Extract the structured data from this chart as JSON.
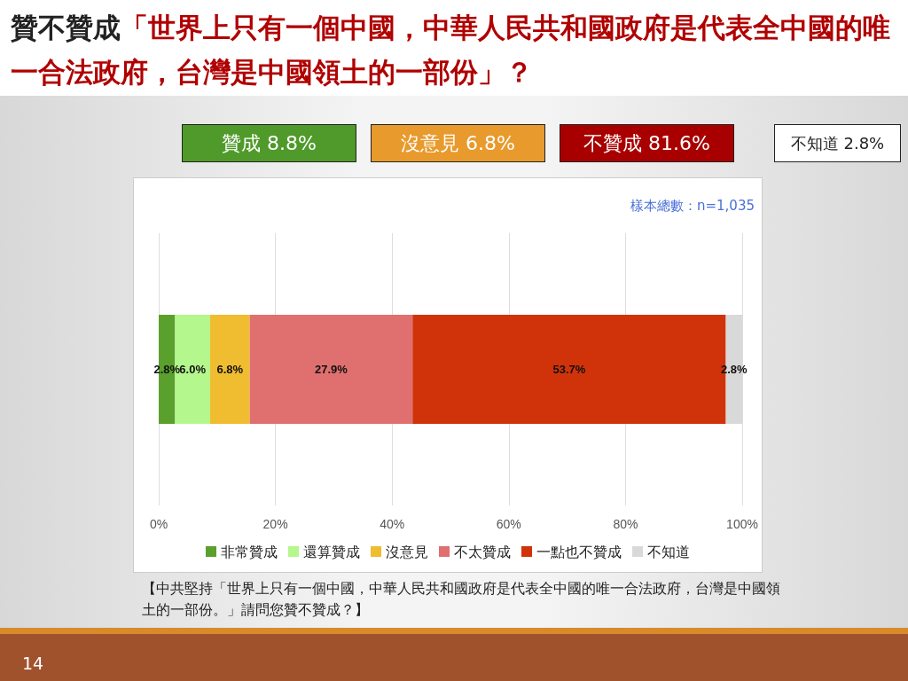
{
  "chart_data": {
    "type": "bar",
    "title": "贊不贊成「世界上只有一個中國，中華人民共和國政府是代表全中國的唯一合法政府，台灣是中國領土的一部份」？",
    "orientation": "horizontal",
    "stacked": true,
    "categories": [
      null
    ],
    "series": [
      {
        "name": "非常贊成",
        "color": "#5aa02c",
        "values": [
          2.8
        ],
        "value_labels": [
          "2.8%"
        ]
      },
      {
        "name": "還算贊成",
        "color": "#b4f78c",
        "values": [
          6.0
        ],
        "value_labels": [
          "6.0%"
        ]
      },
      {
        "name": "沒意見",
        "color": "#f0bd30",
        "values": [
          6.8
        ],
        "value_labels": [
          "6.8%"
        ]
      },
      {
        "name": "不太贊成",
        "color": "#e07070",
        "values": [
          27.9
        ],
        "value_labels": [
          "27.9%"
        ]
      },
      {
        "name": "一點也不贊成",
        "color": "#d0330a",
        "values": [
          53.7
        ],
        "value_labels": [
          "53.7%"
        ]
      },
      {
        "name": "不知道",
        "color": "#d9d9d9",
        "values": [
          2.8
        ],
        "value_labels": [
          "2.8%"
        ]
      }
    ],
    "xlim": [
      0,
      100
    ],
    "xticks": [
      {
        "value": 0,
        "label": "0%"
      },
      {
        "value": 20,
        "label": "20%"
      },
      {
        "value": 40,
        "label": "40%"
      },
      {
        "value": 60,
        "label": "60%"
      },
      {
        "value": 80,
        "label": "80%"
      },
      {
        "value": 100,
        "label": "100%"
      }
    ],
    "grid": "x",
    "legend": "bottom",
    "annotations": [
      "贊成 8.8%",
      "沒意見 6.8%",
      "不贊成 81.6%",
      "不知道 2.8%",
      "樣本總數：n=1,035",
      "【中共堅持「世界上只有一個中國，中華人民共和國政府是代表全中國的唯一合法政府，台灣是中國領土的一部份。」請問您贊不贊成？】",
      "14"
    ]
  }
}
